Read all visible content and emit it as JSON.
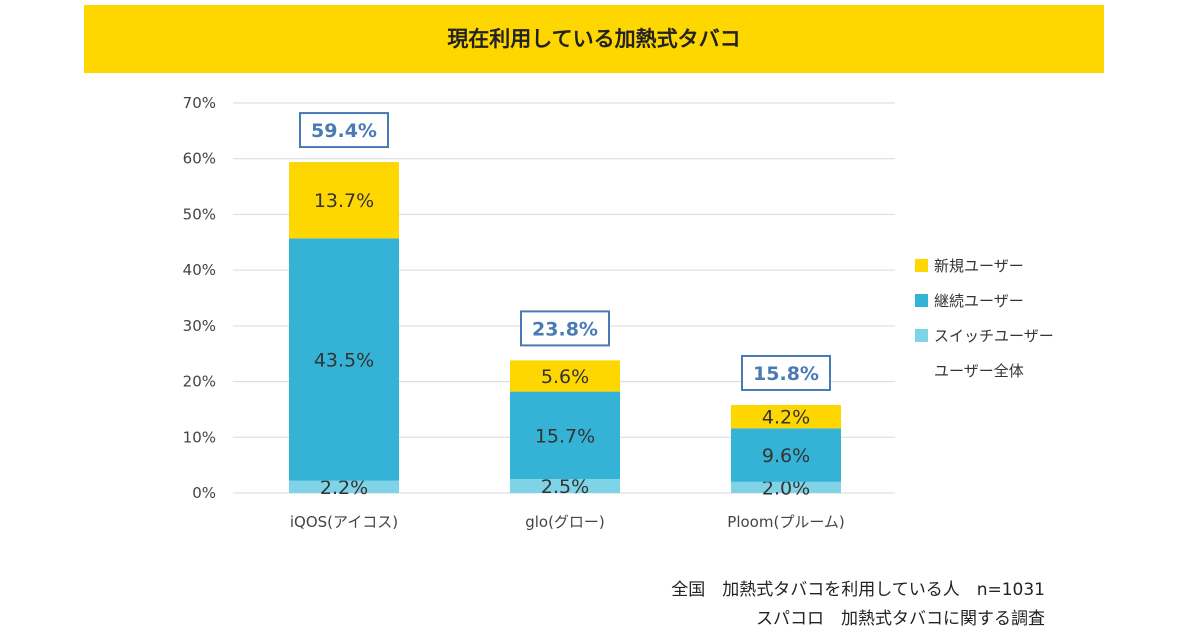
{
  "chart_data": {
    "type": "bar",
    "stacked": true,
    "title": "現在利用している加熱式タバコ",
    "categories": [
      "iQOS(アイコス)",
      "glo(グロー)",
      "Ploom(プルーム)"
    ],
    "series": [
      {
        "name": "スイッチユーザー",
        "values": [
          2.2,
          2.5,
          2.0
        ],
        "labels": [
          "2.2%",
          "2.5%",
          "2.0%"
        ],
        "color": "#7fd3e6"
      },
      {
        "name": "継続ユーザー",
        "values": [
          43.5,
          15.7,
          9.6
        ],
        "labels": [
          "43.5%",
          "15.7%",
          "9.6%"
        ],
        "color": "#35b3d6"
      },
      {
        "name": "新規ユーザー",
        "values": [
          13.7,
          5.6,
          4.2
        ],
        "labels": [
          "13.7%",
          "5.6%",
          "4.2%"
        ],
        "color": "#ffd700"
      }
    ],
    "totals": {
      "name": "ユーザー全体",
      "values": [
        59.4,
        23.8,
        15.8
      ],
      "labels": [
        "59.4%",
        "23.8%",
        "15.8%"
      ],
      "color": "#4a7ab5"
    },
    "ylim": [
      0,
      70
    ],
    "yticks": [
      "0%",
      "10%",
      "20%",
      "30%",
      "40%",
      "50%",
      "60%",
      "70%"
    ],
    "grid": true,
    "legend": "right",
    "legend_order": [
      "新規ユーザー",
      "継続ユーザー",
      "スイッチユーザー",
      "ユーザー全体"
    ]
  },
  "footer": {
    "line1": "全国　加熱式タバコを利用している人　n=1031",
    "line2": "スパコロ　加熱式タバコに関する調査"
  }
}
